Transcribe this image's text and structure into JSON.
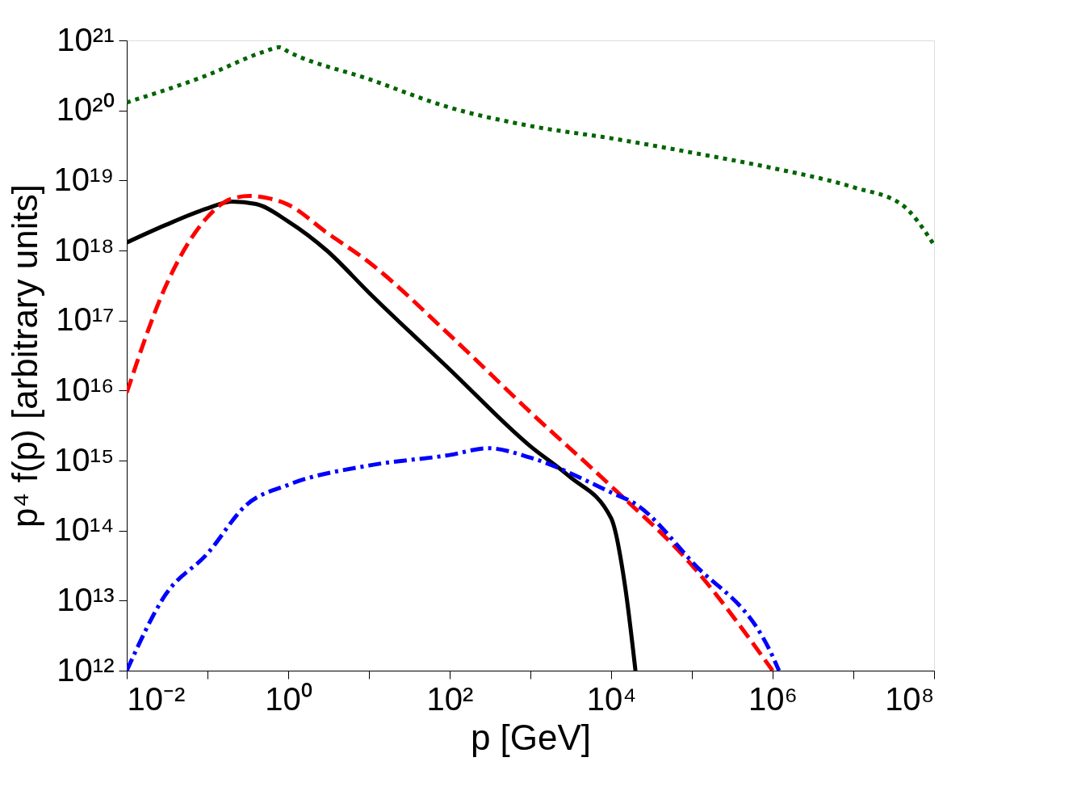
{
  "chart_data": {
    "type": "line",
    "xlabel": "p [GeV]",
    "ylabel": "p⁴ f(p) [arbitrary units]",
    "log": "xy",
    "marker": "none",
    "xlim": [
      0.01,
      100000000
    ],
    "ylim": [
      1000000000000.0,
      1e+21
    ],
    "xticks": [
      {
        "value": 0.01,
        "label": "10⁻²"
      },
      {
        "value": 0.1,
        "label": null
      },
      {
        "value": 1,
        "label": "10⁰"
      },
      {
        "value": 10,
        "label": null
      },
      {
        "value": 100,
        "label": "10²"
      },
      {
        "value": 1000,
        "label": null
      },
      {
        "value": 10000,
        "label": "10⁴"
      },
      {
        "value": 100000,
        "label": null
      },
      {
        "value": 1000000,
        "label": "10⁶"
      },
      {
        "value": 10000000,
        "label": null
      },
      {
        "value": 100000000,
        "label": "10⁸"
      }
    ],
    "yticks": [
      {
        "value": 1000000000000.0,
        "label": "10¹²"
      },
      {
        "value": 10000000000000.0,
        "label": "10¹³"
      },
      {
        "value": 100000000000000.0,
        "label": "10¹⁴"
      },
      {
        "value": 1000000000000000.0,
        "label": "10¹⁵"
      },
      {
        "value": 1e+16,
        "label": "10¹⁶"
      },
      {
        "value": 1e+17,
        "label": "10¹⁷"
      },
      {
        "value": 1e+18,
        "label": "10¹⁸"
      },
      {
        "value": 1e+19,
        "label": "10¹⁹"
      },
      {
        "value": 1e+20,
        "label": "10²⁰"
      },
      {
        "value": 1e+21,
        "label": "10²¹"
      }
    ],
    "series": [
      {
        "color": "#006400",
        "line_style": "dotted",
        "x": [
          0.01,
          0.1,
          0.5,
          0.78,
          1,
          10,
          100,
          1000,
          10000,
          100000,
          1000000,
          10000000,
          40000000,
          100000000
        ],
        "values": [
          1.3e+20,
          3.2e+20,
          6.9e+20,
          8e+20,
          6.9e+20,
          2.8e+20,
          1.1e+20,
          6e+19,
          4e+19,
          2.5e+19,
          1.5e+19,
          8e+18,
          4.5e+18,
          1.2e+18
        ]
      },
      {
        "color": "#000000",
        "line_style": "solid",
        "x": [
          0.01,
          0.03,
          0.1,
          0.2,
          0.4,
          1,
          3,
          10,
          100,
          1000,
          3000,
          10000,
          15000,
          20000
        ],
        "values": [
          1.3e+18,
          2.3e+18,
          4e+18,
          5e+18,
          4.6e+18,
          2.6e+18,
          1e+18,
          2.5e+17,
          2e+16,
          1600000000000000.0,
          600000000000000.0,
          150000000000000.0,
          15000000000000.0,
          1000000000000.0
        ]
      },
      {
        "color": "#ff0000",
        "line_style": "dashed",
        "x": [
          0.01,
          0.03,
          0.1,
          0.2,
          0.33,
          0.6,
          1,
          3,
          10,
          100,
          1000,
          10000,
          100000,
          1000000
        ],
        "values": [
          9300000000000000.0,
          3e+17,
          3e+18,
          5.5e+18,
          6e+18,
          5.5e+18,
          4.5e+18,
          1.8e+18,
          6.8e+17,
          6.2e+16,
          4900000000000000.0,
          430000000000000.0,
          32000000000000.0,
          1000000000000.0
        ]
      },
      {
        "color": "#0000ff",
        "line_style": "dashdot",
        "x": [
          0.01,
          0.03,
          0.1,
          0.3,
          1,
          10,
          100,
          300,
          1000,
          10000,
          20000,
          100000,
          1000000,
          1200000
        ],
        "values": [
          1000000000000.0,
          12000000000000.0,
          47000000000000.0,
          230000000000000.0,
          450000000000000.0,
          850000000000000.0,
          1200000000000000.0,
          1500000000000000.0,
          1100000000000000.0,
          350000000000000.0,
          240000000000000.0,
          36000000000000.0,
          1600000000000.0,
          1000000000000.0
        ]
      }
    ]
  }
}
